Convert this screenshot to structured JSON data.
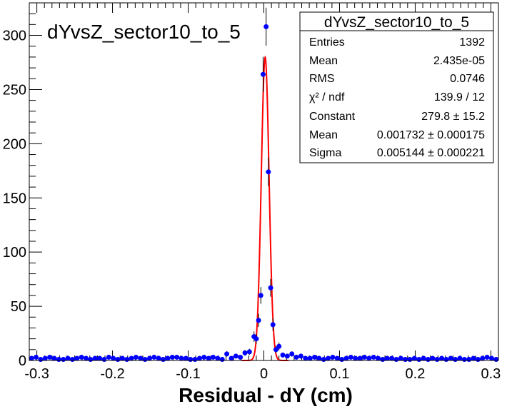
{
  "chart_data": {
    "type": "scatter",
    "title": "dYvsZ_sector10_to_5",
    "xlabel": "Residual - dY (cm)",
    "ylabel": "",
    "xlim": [
      -0.31,
      0.31
    ],
    "ylim": [
      0,
      330
    ],
    "x_ticks": [
      "-0.3",
      "-0.2",
      "-0.1",
      "0",
      "0.1",
      "0.2",
      "0.3"
    ],
    "x_tick_values": [
      -0.3,
      -0.2,
      -0.1,
      0,
      0.1,
      0.2,
      0.3
    ],
    "y_ticks": [
      "0",
      "50",
      "100",
      "150",
      "200",
      "250",
      "300"
    ],
    "y_tick_values": [
      0,
      50,
      100,
      150,
      200,
      250,
      300
    ],
    "series": [
      {
        "name": "",
        "color": "#0000ff",
        "points": [
          {
            "x": -0.307,
            "y": 2
          },
          {
            "x": -0.301,
            "y": 3
          },
          {
            "x": -0.295,
            "y": 1
          },
          {
            "x": -0.289,
            "y": 2
          },
          {
            "x": -0.283,
            "y": 3
          },
          {
            "x": -0.277,
            "y": 2
          },
          {
            "x": -0.271,
            "y": 1
          },
          {
            "x": -0.265,
            "y": 1
          },
          {
            "x": -0.259,
            "y": 2
          },
          {
            "x": -0.253,
            "y": 1
          },
          {
            "x": -0.247,
            "y": 2
          },
          {
            "x": -0.241,
            "y": 3
          },
          {
            "x": -0.235,
            "y": 2
          },
          {
            "x": -0.229,
            "y": 1
          },
          {
            "x": -0.223,
            "y": 2
          },
          {
            "x": -0.217,
            "y": 2
          },
          {
            "x": -0.211,
            "y": 1
          },
          {
            "x": -0.205,
            "y": 3
          },
          {
            "x": -0.199,
            "y": 2
          },
          {
            "x": -0.193,
            "y": 1
          },
          {
            "x": -0.187,
            "y": 2
          },
          {
            "x": -0.181,
            "y": 1
          },
          {
            "x": -0.175,
            "y": 2
          },
          {
            "x": -0.169,
            "y": 3
          },
          {
            "x": -0.163,
            "y": 2
          },
          {
            "x": -0.157,
            "y": 1
          },
          {
            "x": -0.151,
            "y": 2
          },
          {
            "x": -0.145,
            "y": 3
          },
          {
            "x": -0.139,
            "y": 2
          },
          {
            "x": -0.133,
            "y": 1
          },
          {
            "x": -0.127,
            "y": 2
          },
          {
            "x": -0.121,
            "y": 3
          },
          {
            "x": -0.115,
            "y": 3
          },
          {
            "x": -0.109,
            "y": 2
          },
          {
            "x": -0.103,
            "y": 2
          },
          {
            "x": -0.097,
            "y": 1
          },
          {
            "x": -0.091,
            "y": 1
          },
          {
            "x": -0.085,
            "y": 2
          },
          {
            "x": -0.079,
            "y": 3
          },
          {
            "x": -0.073,
            "y": 2
          },
          {
            "x": -0.067,
            "y": 3
          },
          {
            "x": -0.061,
            "y": 2
          },
          {
            "x": -0.055,
            "y": 1
          },
          {
            "x": -0.049,
            "y": 6
          },
          {
            "x": -0.043,
            "y": 2
          },
          {
            "x": -0.037,
            "y": 4
          },
          {
            "x": -0.031,
            "y": 3
          },
          {
            "x": -0.025,
            "y": 7
          },
          {
            "x": -0.019,
            "y": 8
          },
          {
            "x": -0.013,
            "y": 22
          },
          {
            "x": -0.01,
            "y": 20
          },
          {
            "x": -0.007,
            "y": 37
          },
          {
            "x": -0.004,
            "y": 60
          },
          {
            "x": -0.001,
            "y": 264
          },
          {
            "x": 0.003,
            "y": 308
          },
          {
            "x": 0.006,
            "y": 174
          },
          {
            "x": 0.009,
            "y": 67
          },
          {
            "x": 0.012,
            "y": 33
          },
          {
            "x": 0.016,
            "y": 10
          },
          {
            "x": 0.02,
            "y": 13
          },
          {
            "x": 0.025,
            "y": 5
          },
          {
            "x": 0.031,
            "y": 4
          },
          {
            "x": 0.037,
            "y": 6
          },
          {
            "x": 0.043,
            "y": 3
          },
          {
            "x": 0.049,
            "y": 4
          },
          {
            "x": 0.055,
            "y": 2
          },
          {
            "x": 0.061,
            "y": 2
          },
          {
            "x": 0.067,
            "y": 3
          },
          {
            "x": 0.073,
            "y": 2
          },
          {
            "x": 0.079,
            "y": 1
          },
          {
            "x": 0.085,
            "y": 2
          },
          {
            "x": 0.091,
            "y": 3
          },
          {
            "x": 0.097,
            "y": 2
          },
          {
            "x": 0.103,
            "y": 1
          },
          {
            "x": 0.109,
            "y": 2
          },
          {
            "x": 0.115,
            "y": 3
          },
          {
            "x": 0.121,
            "y": 2
          },
          {
            "x": 0.127,
            "y": 2
          },
          {
            "x": 0.133,
            "y": 3
          },
          {
            "x": 0.139,
            "y": 2
          },
          {
            "x": 0.145,
            "y": 3
          },
          {
            "x": 0.151,
            "y": 2
          },
          {
            "x": 0.157,
            "y": 1
          },
          {
            "x": 0.163,
            "y": 2
          },
          {
            "x": 0.169,
            "y": 2
          },
          {
            "x": 0.175,
            "y": 1
          },
          {
            "x": 0.181,
            "y": 2
          },
          {
            "x": 0.187,
            "y": 1
          },
          {
            "x": 0.193,
            "y": 1
          },
          {
            "x": 0.199,
            "y": 2
          },
          {
            "x": 0.205,
            "y": 1
          },
          {
            "x": 0.211,
            "y": 2
          },
          {
            "x": 0.217,
            "y": 1
          },
          {
            "x": 0.223,
            "y": 2
          },
          {
            "x": 0.229,
            "y": 1
          },
          {
            "x": 0.235,
            "y": 2
          },
          {
            "x": 0.241,
            "y": 1
          },
          {
            "x": 0.247,
            "y": 2
          },
          {
            "x": 0.253,
            "y": 1
          },
          {
            "x": 0.259,
            "y": 2
          },
          {
            "x": 0.265,
            "y": 1
          },
          {
            "x": 0.271,
            "y": 1
          },
          {
            "x": 0.277,
            "y": 2
          },
          {
            "x": 0.283,
            "y": 1
          },
          {
            "x": 0.289,
            "y": 2
          },
          {
            "x": 0.295,
            "y": 3
          },
          {
            "x": 0.301,
            "y": 2
          },
          {
            "x": 0.307,
            "y": 1
          }
        ]
      }
    ],
    "fit": {
      "type": "gaussian",
      "color": "#ff0000",
      "constant": 279.8,
      "mean": 0.001732,
      "sigma": 0.005144
    },
    "stats_box": {
      "title": "dYvsZ_sector10_to_5",
      "placement": "top-right",
      "rows": [
        {
          "label": "Entries",
          "value": "1392"
        },
        {
          "label": "Mean",
          "value": "2.435e-05"
        },
        {
          "label": "RMS",
          "value": "0.0746"
        },
        {
          "label": "χ² / ndf",
          "value": "139.9 / 12"
        },
        {
          "label": "Constant",
          "value": "279.8 ± 15.2"
        },
        {
          "label": "Mean",
          "value": "0.001732 ± 0.000175"
        },
        {
          "label": "Sigma",
          "value": "0.005144 ± 0.000221"
        }
      ]
    },
    "grid": false
  }
}
